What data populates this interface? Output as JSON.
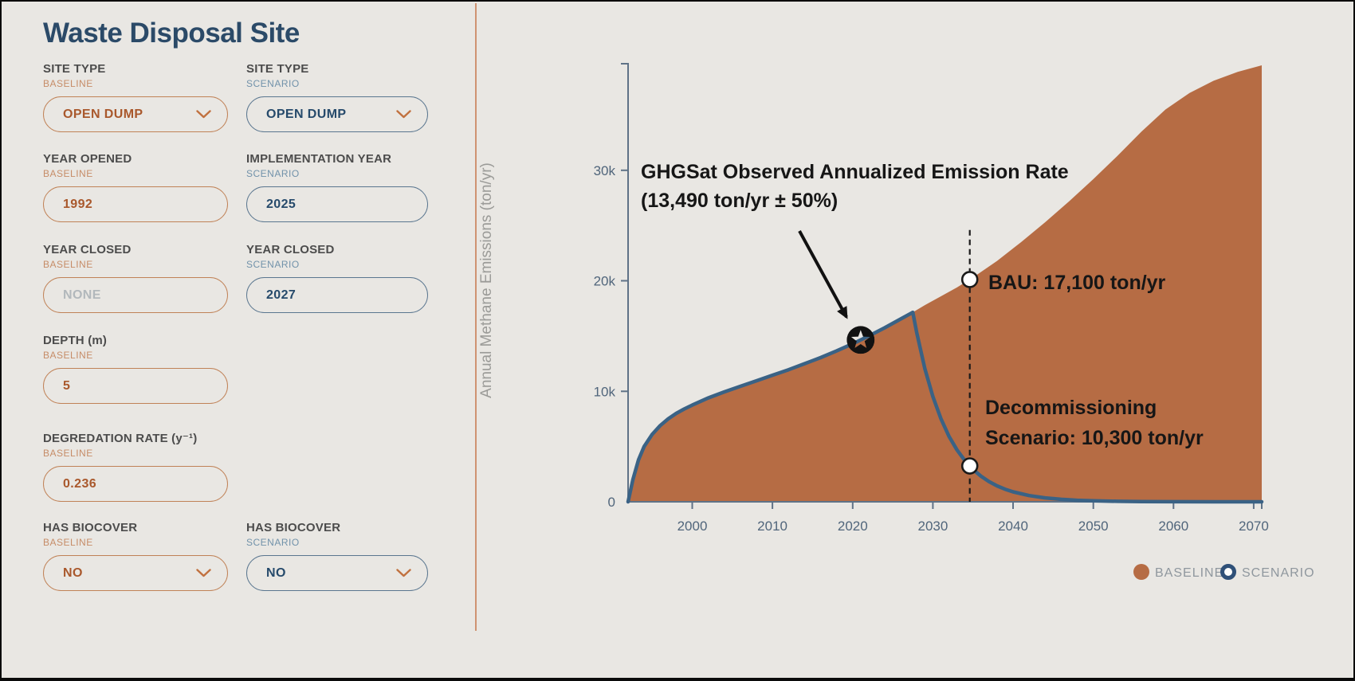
{
  "panel": {
    "title": "Waste Disposal Site",
    "fields": [
      {
        "label": "SITE TYPE",
        "sublabel": "BASELINE",
        "value": "OPEN DUMP",
        "variant": "baseline",
        "type": "dropdown",
        "col": 1,
        "row": 1,
        "muted": false
      },
      {
        "label": "SITE TYPE",
        "sublabel": "SCENARIO",
        "value": "OPEN DUMP",
        "variant": "scenario",
        "type": "dropdown",
        "col": 2,
        "row": 1,
        "muted": false
      },
      {
        "label": "YEAR OPENED",
        "sublabel": "BASELINE",
        "value": "1992",
        "variant": "baseline",
        "type": "input",
        "col": 1,
        "row": 2,
        "muted": false
      },
      {
        "label": "IMPLEMENTATION YEAR",
        "sublabel": "SCENARIO",
        "value": "2025",
        "variant": "scenario",
        "type": "input",
        "col": 2,
        "row": 2,
        "muted": false
      },
      {
        "label": "YEAR CLOSED",
        "sublabel": "BASELINE",
        "value": "NONE",
        "variant": "baseline",
        "type": "input",
        "col": 1,
        "row": 3,
        "muted": true
      },
      {
        "label": "YEAR CLOSED",
        "sublabel": "SCENARIO",
        "value": "2027",
        "variant": "scenario",
        "type": "input",
        "col": 2,
        "row": 3,
        "muted": false
      },
      {
        "label": "DEPTH (m)",
        "sublabel": "BASELINE",
        "value": "5",
        "variant": "baseline",
        "type": "input",
        "col": 1,
        "row": 4,
        "muted": false
      },
      {
        "label": "DEGREDATION RATE (y⁻¹)",
        "sublabel": "BASELINE",
        "value": "0.236",
        "variant": "baseline",
        "type": "input",
        "col": 1,
        "row": 5,
        "muted": false
      },
      {
        "label": "HAS BIOCOVER",
        "sublabel": "BASELINE",
        "value": "NO",
        "variant": "baseline",
        "type": "dropdown",
        "col": 1,
        "row": 6,
        "muted": false
      },
      {
        "label": "HAS BIOCOVER",
        "sublabel": "SCENARIO",
        "value": "NO",
        "variant": "scenario",
        "type": "dropdown",
        "col": 2,
        "row": 6,
        "muted": false
      }
    ]
  },
  "chart_data": {
    "type": "area+line",
    "title": "",
    "xlabel": "",
    "ylabel": "Annual Methane Emissions (ton/yr)",
    "xlim": [
      1992,
      2071
    ],
    "ylim": [
      0,
      39500
    ],
    "grid": false,
    "legend_position": "bottom-right",
    "x_ticks": [
      2000,
      2010,
      2020,
      2030,
      2040,
      2050,
      2060,
      2070
    ],
    "y_ticks": [
      {
        "v": 0,
        "label": "0"
      },
      {
        "v": 10000,
        "label": "10k"
      },
      {
        "v": 20000,
        "label": "20k"
      },
      {
        "v": 30000,
        "label": "30k"
      }
    ],
    "series": [
      {
        "name": "BASELINE",
        "type": "area",
        "color": "#b66c44",
        "x": [
          1992,
          1992.6,
          1993.3,
          1994,
          1995,
          1996,
          1997,
          1998,
          1999,
          2000,
          2002,
          2004,
          2006,
          2008,
          2010,
          2012,
          2014,
          2016,
          2018,
          2020,
          2022,
          2024,
          2026,
          2027.5,
          2029,
          2031,
          2033,
          2035,
          2038,
          2041,
          2044,
          2047,
          2050,
          2053,
          2056,
          2059,
          2062,
          2065,
          2068,
          2071
        ],
        "y": [
          0,
          2000,
          3800,
          5000,
          6100,
          6900,
          7500,
          8000,
          8400,
          8750,
          9400,
          9950,
          10450,
          10950,
          11450,
          11950,
          12500,
          13050,
          13650,
          14300,
          15000,
          15750,
          16550,
          17150,
          17800,
          18600,
          19400,
          20300,
          21800,
          23500,
          25300,
          27200,
          29200,
          31300,
          33500,
          35500,
          37000,
          38100,
          38900,
          39500
        ]
      },
      {
        "name": "SCENARIO",
        "type": "line",
        "color": "#3a6285",
        "x": [
          1992,
          1992.6,
          1993.3,
          1994,
          1995,
          1996,
          1997,
          1998,
          1999,
          2000,
          2002,
          2004,
          2006,
          2008,
          2010,
          2012,
          2014,
          2016,
          2018,
          2020,
          2022,
          2024,
          2026,
          2027.5,
          2028,
          2029,
          2030,
          2031,
          2032,
          2033,
          2034,
          2035,
          2036,
          2037,
          2038,
          2039,
          2040,
          2042,
          2044,
          2046,
          2048,
          2050,
          2053,
          2056,
          2060,
          2065,
          2071
        ],
        "y": [
          0,
          2000,
          3800,
          5000,
          6100,
          6900,
          7500,
          8000,
          8400,
          8750,
          9400,
          9950,
          10450,
          10950,
          11450,
          11950,
          12500,
          13050,
          13650,
          14300,
          15000,
          15750,
          16550,
          17150,
          15250,
          12050,
          9520,
          7520,
          5940,
          4700,
          3710,
          2930,
          2315,
          1830,
          1445,
          1140,
          900,
          560,
          350,
          220,
          140,
          90,
          42,
          21,
          8,
          3,
          1
        ]
      }
    ],
    "annotations": {
      "observed": {
        "line1": "GHGSat Observed Annualized Emission Rate",
        "line2": "(13,490 ton/yr ± 50%)",
        "year": 2021,
        "value_label": "13,490 ton/yr ± 50%"
      },
      "bau": {
        "label": "BAU: 17,100 ton/yr",
        "year": 2034.6,
        "value_label": "17,100 ton/yr"
      },
      "scenario": {
        "line1": "Decommissioning",
        "line2": "Scenario: 10,300 ton/yr",
        "year": 2034.6,
        "value_label": "10,300 ton/yr"
      }
    },
    "guide_line": {
      "year": 2034.6,
      "top_value": 24600
    },
    "markers": [
      {
        "name": "observed-star",
        "series": 0,
        "year": 2021,
        "style": "star"
      },
      {
        "name": "bau-point",
        "series": 0,
        "year": 2034.6,
        "style": "ring"
      },
      {
        "name": "scenario-point",
        "series": 1,
        "year": 2034.6,
        "style": "ring"
      }
    ],
    "legend": [
      {
        "label": "BASELINE",
        "marker": "filled-circle",
        "color": "#b66c44"
      },
      {
        "label": "SCENARIO",
        "marker": "ring",
        "color": "#2f5078"
      }
    ]
  }
}
